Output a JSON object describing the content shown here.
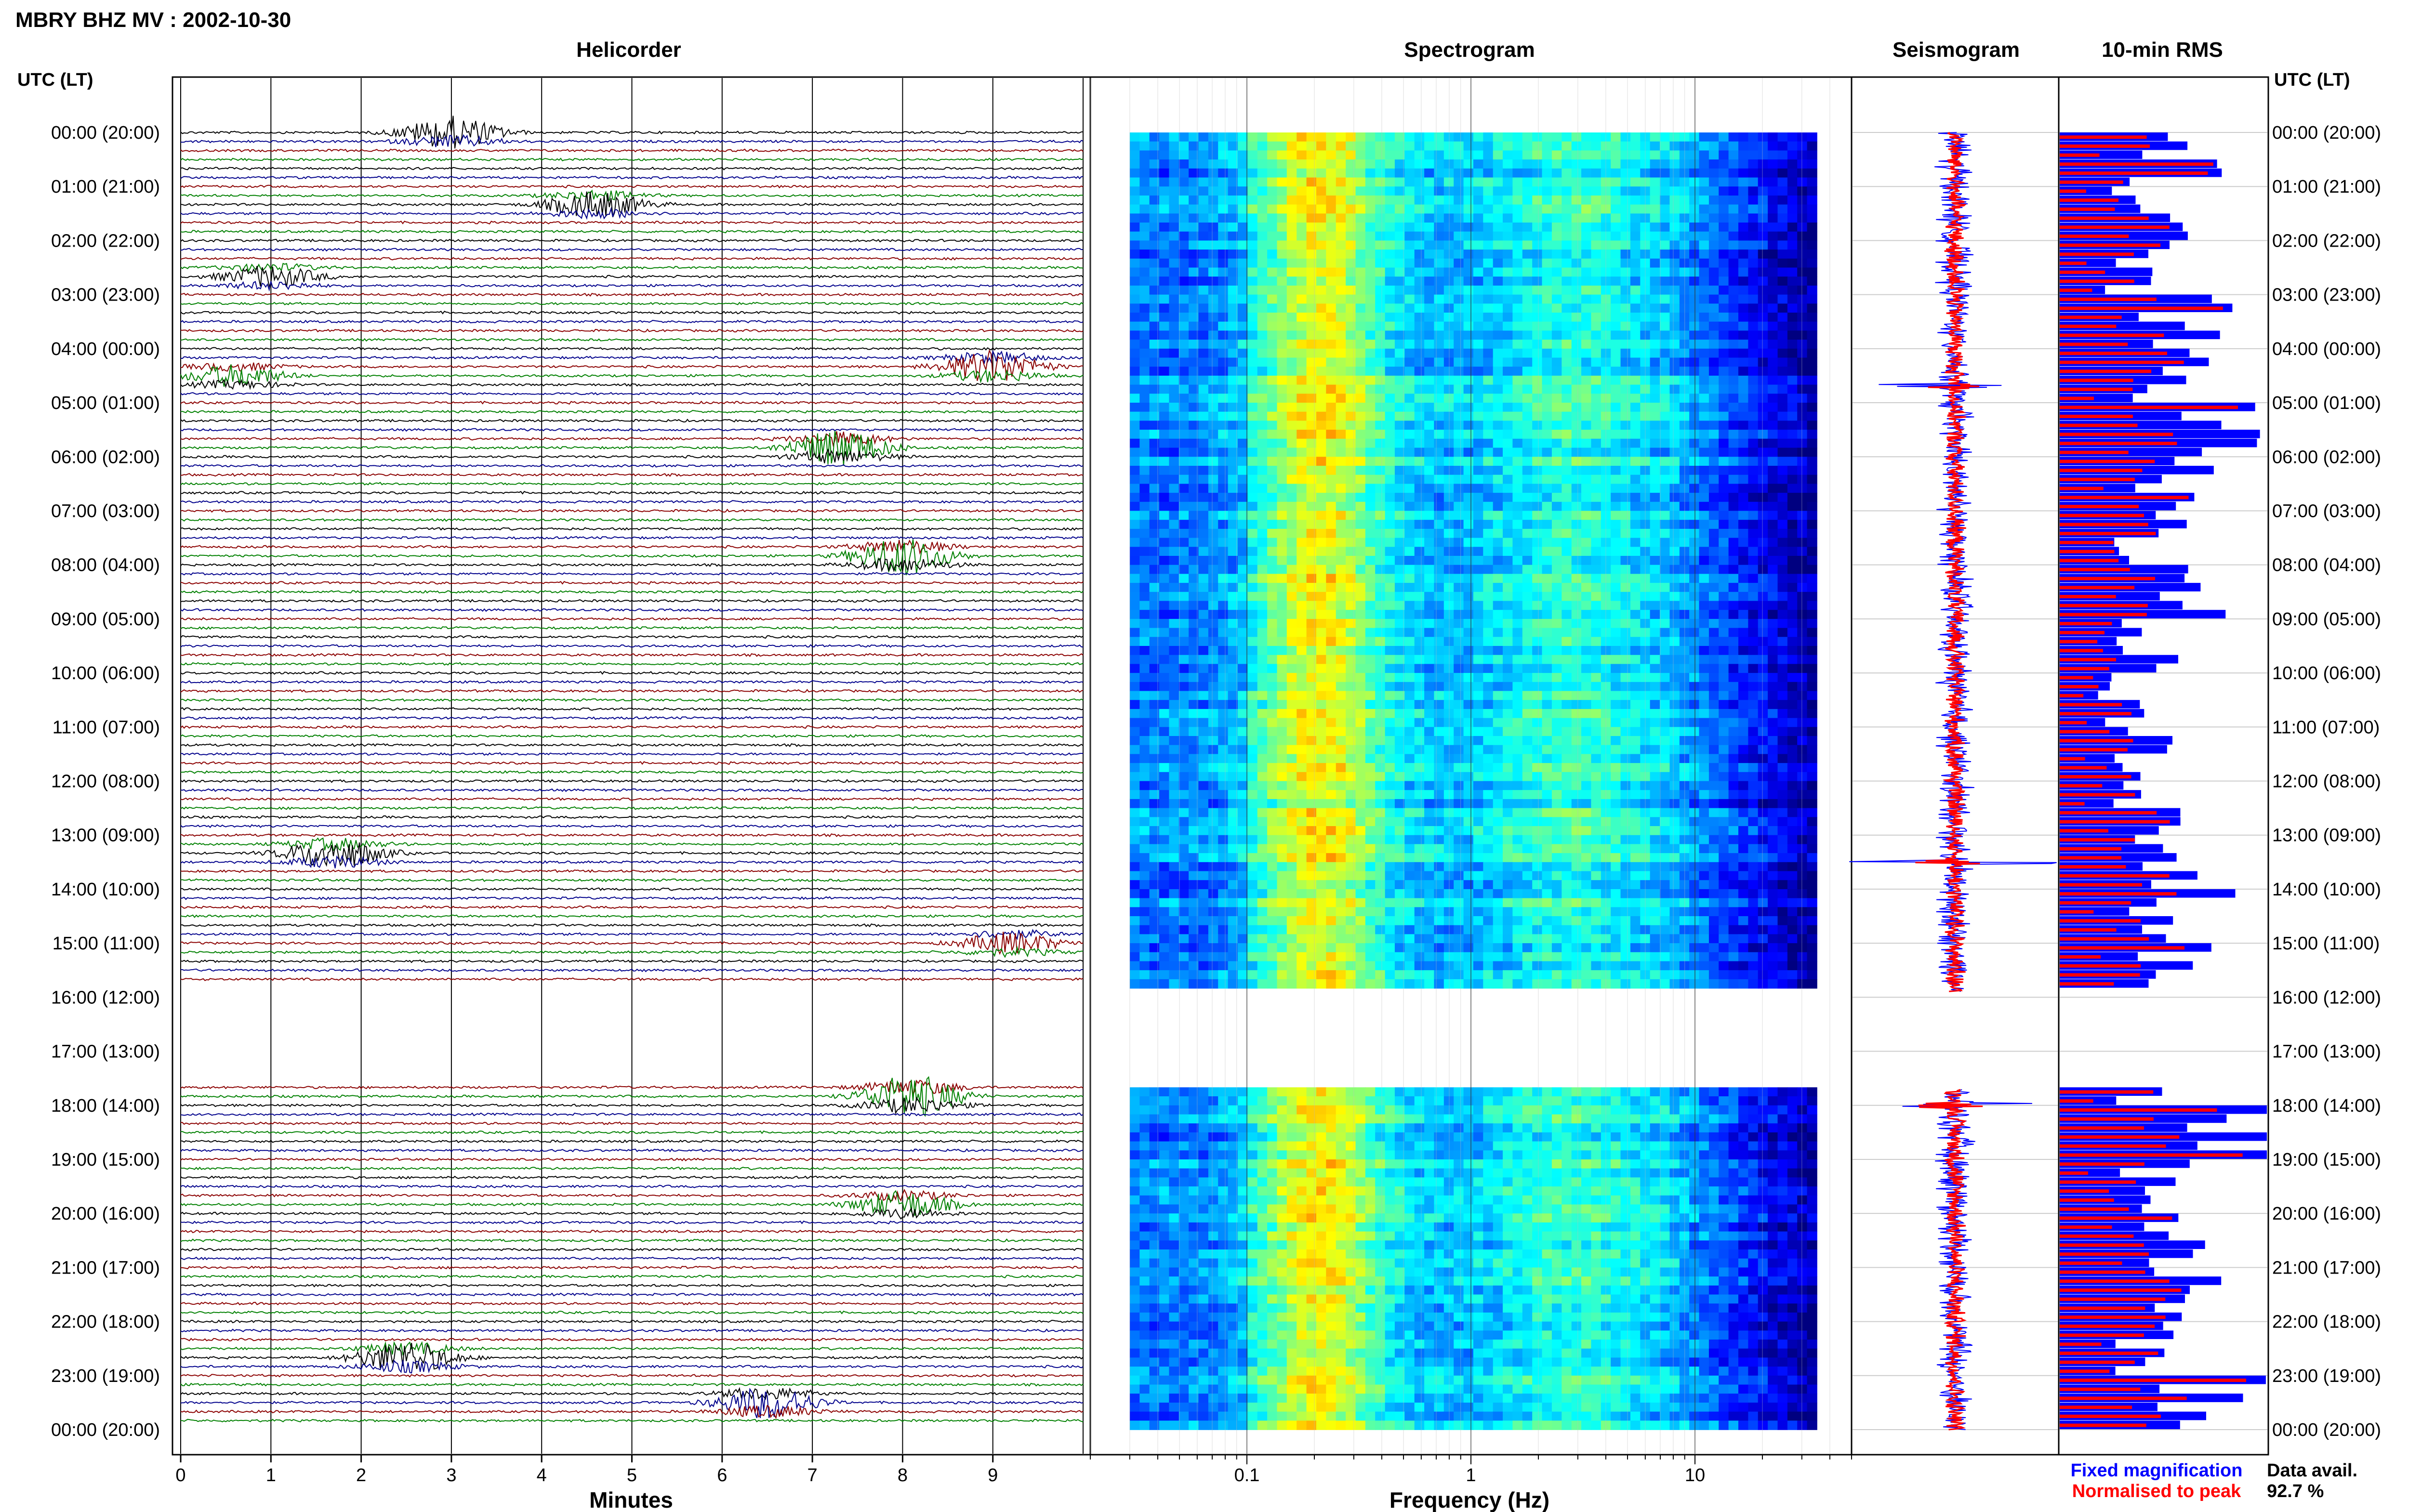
{
  "header": {
    "station_title": "MBRY BHZ MV : 2002-10-30"
  },
  "panels": {
    "helicorder": "Helicorder",
    "spectrogram": "Spectrogram",
    "seismogram": "Seismogram",
    "rms": "10-min RMS"
  },
  "axis_labels": {
    "time_left": "UTC (LT)",
    "time_right": "UTC (LT)",
    "helicorder_x": "Minutes",
    "spectrogram_x": "Frequency (Hz)"
  },
  "legend": {
    "fixed": "Fixed magnification",
    "normalised": "Normalised to peak",
    "fixed_color": "#0000ff",
    "normalised_color": "#ff0000"
  },
  "availability": {
    "label": "Data avail.",
    "value": "92.7 %"
  },
  "colors": {
    "trace_cycle": [
      "#000000",
      "#00008b",
      "#8b0000",
      "#008000"
    ],
    "spectrogram_background": "#00007f",
    "rms_fixed": "#0000ff",
    "rms_normalised": "#ff0000"
  },
  "chart_data": [
    {
      "type": "helicorder",
      "xlabel": "Minutes",
      "x_ticks": [
        "0",
        "1",
        "2",
        "3",
        "4",
        "5",
        "6",
        "7",
        "8",
        "9"
      ],
      "xlim": [
        0,
        10
      ],
      "time_ticks": [
        "00:00 (20:00)",
        "01:00 (21:00)",
        "02:00 (22:00)",
        "03:00 (23:00)",
        "04:00 (00:00)",
        "05:00 (01:00)",
        "06:00 (02:00)",
        "07:00 (03:00)",
        "08:00 (04:00)",
        "09:00 (05:00)",
        "10:00 (06:00)",
        "11:00 (07:00)",
        "12:00 (08:00)",
        "13:00 (09:00)",
        "14:00 (10:00)",
        "15:00 (11:00)",
        "16:00 (12:00)",
        "17:00 (13:00)",
        "18:00 (14:00)",
        "19:00 (15:00)",
        "20:00 (16:00)",
        "21:00 (17:00)",
        "22:00 (18:00)",
        "23:00 (19:00)",
        "00:00 (20:00)"
      ],
      "rows_per_hour": 6,
      "data_gap_hours": [
        15.9,
        17.7
      ],
      "events": [
        {
          "hour": 0.0,
          "minute": 3.0,
          "amplitude": 3,
          "color": "#8b0000"
        },
        {
          "hour": 1.3,
          "minute": 4.6,
          "amplitude": 2.5,
          "color": "#00008b"
        },
        {
          "hour": 2.6,
          "minute": 1.0,
          "amplitude": 2,
          "color": "#000000"
        },
        {
          "hour": 4.3,
          "minute": 9.0,
          "amplitude": 3,
          "color": "#008000"
        },
        {
          "hour": 4.5,
          "minute": 0.6,
          "amplitude": 2,
          "color": "#000000"
        },
        {
          "hour": 5.8,
          "minute": 7.3,
          "amplitude": 3.5,
          "color": "#000000"
        },
        {
          "hour": 7.9,
          "minute": 8.0,
          "amplitude": 3.5,
          "color": "#000000"
        },
        {
          "hour": 13.3,
          "minute": 1.7,
          "amplitude": 3,
          "color": "#8b0000"
        },
        {
          "hour": 15.0,
          "minute": 9.2,
          "amplitude": 2,
          "color": "#008000"
        },
        {
          "hour": 17.8,
          "minute": 8.1,
          "amplitude": 4,
          "color": "#008000"
        },
        {
          "hour": 19.9,
          "minute": 8.0,
          "amplitude": 2.5,
          "color": "#008000"
        },
        {
          "hour": 22.6,
          "minute": 2.5,
          "amplitude": 3,
          "color": "#8b0000"
        },
        {
          "hour": 23.5,
          "minute": 6.5,
          "amplitude": 3,
          "color": "#8b0000"
        }
      ]
    },
    {
      "type": "heatmap",
      "xlabel": "Frequency (Hz)",
      "x_scale": "log",
      "xlim": [
        0.02,
        50
      ],
      "x_tick_labels": [
        "0.1",
        "1",
        "10"
      ],
      "x_tick_values": [
        0.1,
        1,
        10
      ],
      "data_range_hz": [
        0.03,
        35
      ],
      "dominant_band_hz": [
        0.15,
        0.3
      ],
      "colormap": "jet",
      "data_gap_hours": [
        15.9,
        17.7
      ]
    },
    {
      "type": "line",
      "title": "Seismogram",
      "series": [
        {
          "name": "Fixed magnification",
          "color": "#0000ff"
        },
        {
          "name": "Normalised to peak",
          "color": "#ff0000"
        }
      ],
      "spikes_hours": [
        4.7,
        13.5,
        18.0
      ],
      "data_gap_hours": [
        15.9,
        17.7
      ]
    },
    {
      "type": "bar",
      "title": "10-min RMS",
      "orientation": "horizontal",
      "series": [
        {
          "name": "Fixed magnification",
          "color": "#0000ff"
        },
        {
          "name": "Normalised to peak",
          "color": "#ff0000"
        }
      ],
      "hourly_relative_rms": [
        0.55,
        0.45,
        0.38,
        0.6,
        0.5,
        0.95,
        0.62,
        0.45,
        0.7,
        0.4,
        0.3,
        0.42,
        0.46,
        0.5,
        0.6,
        0.55,
        0,
        0,
        0.9,
        0.5,
        0.65,
        0.55,
        0.45,
        0.7
      ],
      "data_gap_hours": [
        15.9,
        17.7
      ]
    }
  ]
}
